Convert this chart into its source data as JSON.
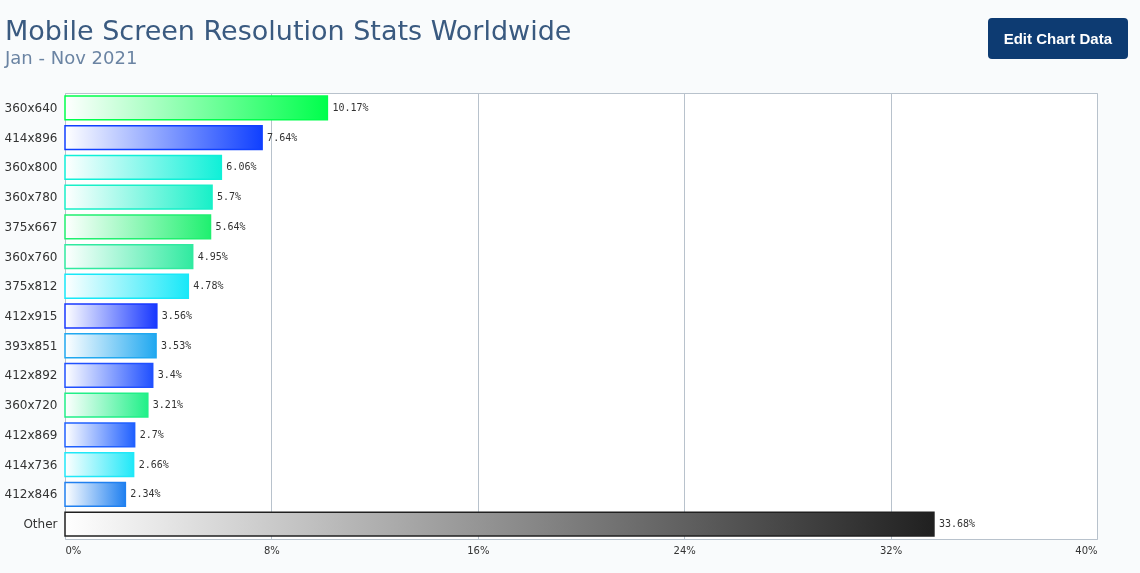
{
  "chart_data": {
    "type": "bar",
    "orientation": "horizontal",
    "title": "Mobile Screen Resolution Stats Worldwide",
    "subtitle": "Jan - Nov 2021",
    "categories": [
      "360x640",
      "414x896",
      "360x800",
      "360x780",
      "375x667",
      "360x760",
      "375x812",
      "412x915",
      "393x851",
      "412x892",
      "360x720",
      "412x869",
      "414x736",
      "412x846",
      "Other"
    ],
    "values": [
      10.17,
      7.64,
      6.06,
      5.7,
      5.64,
      4.95,
      4.78,
      3.56,
      3.53,
      3.4,
      3.21,
      2.7,
      2.66,
      2.34,
      33.68
    ],
    "value_labels": [
      "10.17%",
      "7.64%",
      "6.06%",
      "5.7%",
      "5.64%",
      "4.95%",
      "4.78%",
      "3.56%",
      "3.53%",
      "3.4%",
      "3.21%",
      "2.7%",
      "2.66%",
      "2.34%",
      "33.68%"
    ],
    "colors": [
      "#00ff4c",
      "#1040ff",
      "#10f0d8",
      "#18f0c8",
      "#20f070",
      "#30eaa0",
      "#18e8f8",
      "#1838ff",
      "#20a8f0",
      "#2050ff",
      "#20f088",
      "#2060ff",
      "#20e8f8",
      "#2080f0",
      "#202020"
    ],
    "xlim": [
      0,
      40
    ],
    "xticks": [
      {
        "value": 0,
        "label": "0%"
      },
      {
        "value": 8,
        "label": "8%"
      },
      {
        "value": 16,
        "label": "16%"
      },
      {
        "value": 24,
        "label": "24%"
      },
      {
        "value": 32,
        "label": "32%"
      },
      {
        "value": 40,
        "label": "40%"
      }
    ],
    "grid": "x",
    "annotations": [
      "Edit Chart Data"
    ]
  }
}
